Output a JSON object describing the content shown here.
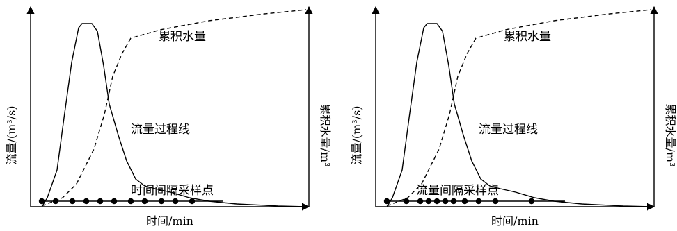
{
  "panels": [
    {
      "id": "left",
      "y_axis_left_label": "流量/(m³/s)",
      "y_axis_right_label": "累积水量/m³",
      "x_axis_label": "时间/min",
      "cumulative_label": "累积水量",
      "hydrograph_label": "流量过程线",
      "sampling_label": "时间间隔采样点",
      "sampling_points_t": [
        0.04,
        0.09,
        0.15,
        0.2,
        0.25,
        0.3,
        0.36,
        0.41,
        0.47,
        0.52,
        0.58
      ]
    },
    {
      "id": "right",
      "y_axis_left_label": "流量/(m³/s)",
      "y_axis_right_label": "累积水量/m³",
      "x_axis_label": "时间/min",
      "cumulative_label": "累积水量",
      "hydrograph_label": "流量过程线",
      "sampling_label": "流量间隔采样点",
      "sampling_points_t": [
        0.04,
        0.11,
        0.16,
        0.19,
        0.22,
        0.25,
        0.28,
        0.32,
        0.37,
        0.43,
        0.56
      ]
    }
  ]
}
